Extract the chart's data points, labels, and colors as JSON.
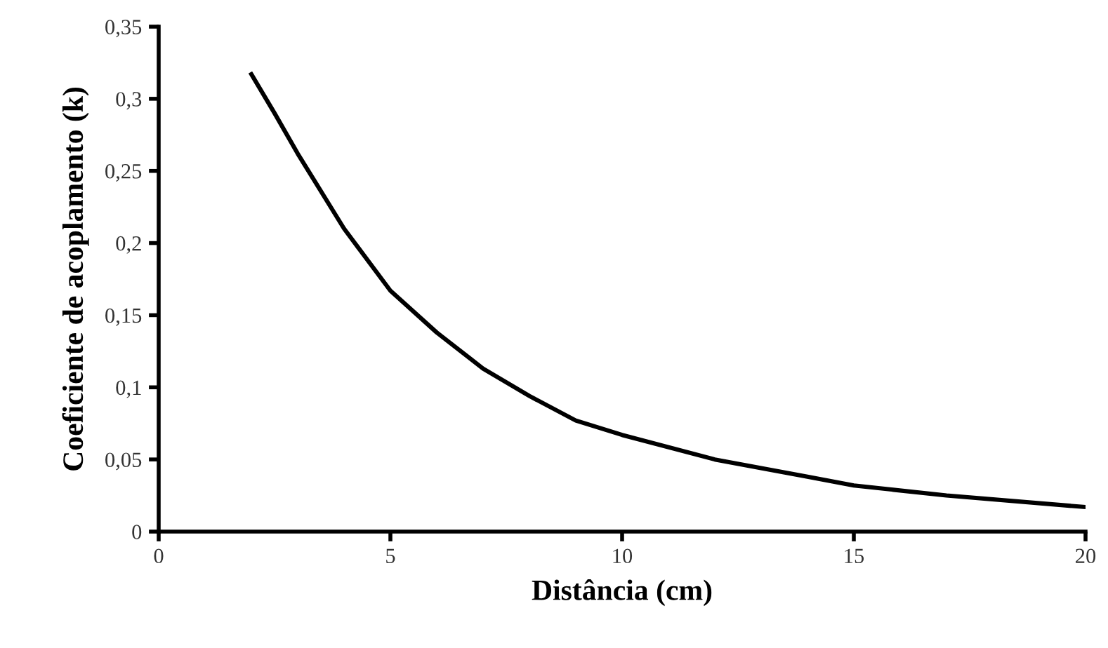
{
  "chart_data": {
    "type": "line",
    "xlabel": "Distância (cm)",
    "ylabel": "Coeficiente de acoplamento (k)",
    "x": [
      2,
      2.5,
      3,
      4,
      5,
      6,
      7,
      8,
      9,
      10,
      12,
      14,
      15,
      17,
      20
    ],
    "series": [
      {
        "color": "#000000",
        "values": [
          0.317,
          0.29,
          0.262,
          0.21,
          0.167,
          0.138,
          0.113,
          0.094,
          0.077,
          0.067,
          0.05,
          0.038,
          0.032,
          0.025,
          0.017
        ]
      }
    ],
    "xlim": [
      0,
      20
    ],
    "xticks": [
      0,
      5,
      10,
      15,
      20
    ],
    "ylim": [
      0,
      0.35
    ],
    "yticks": [
      {
        "value": 0,
        "label": "0"
      },
      {
        "value": 0.05,
        "label": "0,05"
      },
      {
        "value": 0.1,
        "label": "0,1"
      },
      {
        "value": 0.15,
        "label": "0,15"
      },
      {
        "value": 0.2,
        "label": "0,2"
      },
      {
        "value": 0.25,
        "label": "0,25"
      },
      {
        "value": 0.3,
        "label": "0,3"
      },
      {
        "value": 0.35,
        "label": "0,35"
      }
    ],
    "grid": false,
    "marker": "none",
    "line_style": "solid"
  }
}
